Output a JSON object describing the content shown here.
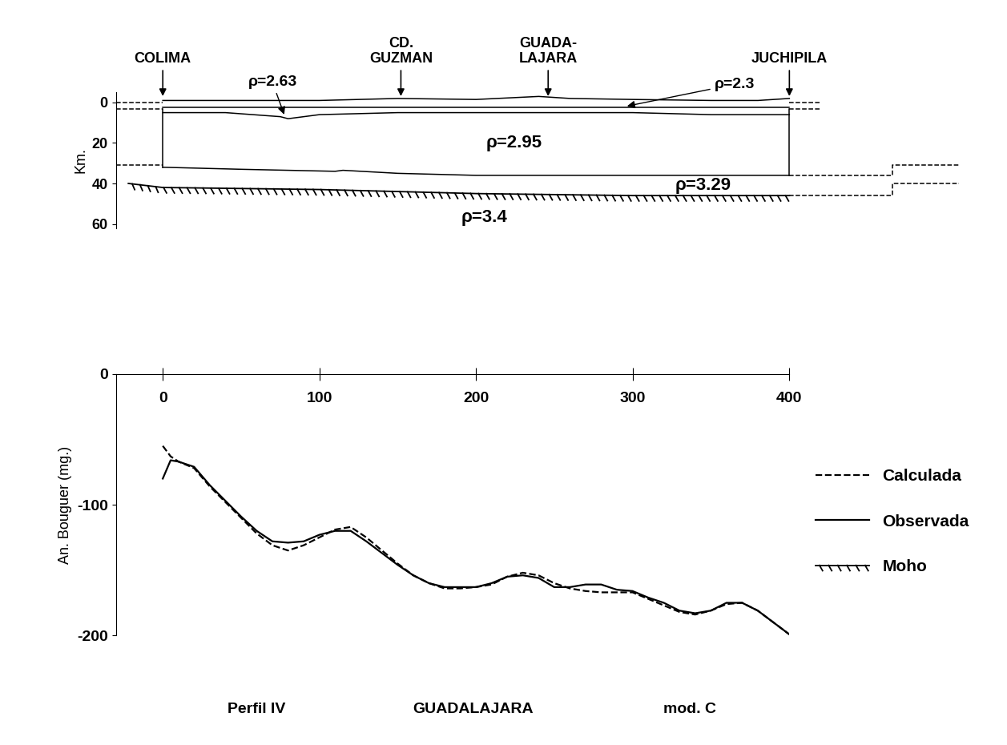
{
  "chart_data": [
    {
      "type": "section",
      "ylabel": "Km.",
      "xlim": [
        -30,
        510
      ],
      "ylim": [
        62,
        -5
      ],
      "yticks": [
        0,
        20,
        40,
        60
      ],
      "tick_labels": "y",
      "places": [
        {
          "text": "COLIMA",
          "x": 0
        },
        {
          "text": "CD.\nGUZMAN",
          "x": 152
        },
        {
          "text": "GUADA-\nLAJARA",
          "x": 246
        },
        {
          "text": "JUCHIPILA",
          "x": 400
        }
      ],
      "annotations": [
        {
          "text": "ρ=2.63",
          "x": 70,
          "y": -10,
          "arrow_to": [
            78,
            7
          ]
        },
        {
          "text": "ρ=2.3",
          "x": 365,
          "y": -9,
          "arrow_to": [
            295,
            2
          ]
        },
        {
          "text": "ρ=2.95",
          "x": 224,
          "y": 20
        },
        {
          "text": "ρ=3.29",
          "x": 345,
          "y": 41
        },
        {
          "text": "ρ=3.4",
          "x": 205,
          "y": 57
        }
      ],
      "boundaries": [
        {
          "x": [
            0,
            20,
            50,
            100,
            150,
            200,
            240,
            260,
            300,
            350,
            380,
            400
          ],
          "values": [
            -1,
            -1,
            -1,
            -1,
            -2,
            -1.5,
            -3,
            -2,
            -1.5,
            -1,
            -1,
            -2
          ],
          "line_style": "solid"
        },
        {
          "x": [
            0,
            400
          ],
          "values": [
            2.5,
            2.5
          ],
          "line_style": "solid"
        },
        {
          "x": [
            0,
            40,
            75,
            80,
            100,
            150,
            200,
            300,
            350,
            400
          ],
          "values": [
            5,
            5,
            7,
            8,
            6,
            5,
            5,
            5,
            6,
            6
          ],
          "line_style": "solid"
        },
        {
          "x": [
            0,
            50,
            110,
            115,
            150,
            200,
            300,
            400
          ],
          "values": [
            32,
            33,
            34,
            33.5,
            35,
            36,
            36,
            36
          ],
          "line_style": "solid"
        },
        {
          "x": [
            0,
            0
          ],
          "values": [
            3,
            32
          ],
          "line_style": "solid"
        },
        {
          "x": [
            400,
            400
          ],
          "values": [
            3,
            36
          ],
          "line_style": "solid"
        },
        {
          "x": [
            -30,
            0
          ],
          "values": [
            0,
            0
          ],
          "line_style": "dashed"
        },
        {
          "x": [
            -30,
            0
          ],
          "values": [
            3,
            3
          ],
          "line_style": "dashed"
        },
        {
          "x": [
            400,
            420
          ],
          "values": [
            0,
            0
          ],
          "line_style": "dashed"
        },
        {
          "x": [
            400,
            420
          ],
          "values": [
            3,
            3
          ],
          "line_style": "dashed"
        },
        {
          "x": [
            -30,
            0
          ],
          "values": [
            31,
            31
          ],
          "line_style": "dashed"
        },
        {
          "x": [
            400,
            466,
            466,
            508
          ],
          "values": [
            36,
            36,
            31,
            31
          ],
          "line_style": "dashed"
        },
        {
          "x": [
            400,
            466,
            466,
            508
          ],
          "values": [
            46,
            46,
            40,
            40
          ],
          "line_style": "dashed"
        }
      ],
      "series": [
        {
          "name": "Moho",
          "x": [
            -22,
            0,
            100,
            200,
            300,
            400
          ],
          "values": [
            40,
            42,
            43,
            45,
            46,
            46
          ],
          "color": "#000000",
          "line_style": "hatched"
        }
      ]
    },
    {
      "type": "line",
      "ylabel": "An. Bouguer (mg.)",
      "xlim": [
        -30,
        400
      ],
      "ylim": [
        -200,
        0
      ],
      "xticks": [
        0,
        100,
        200,
        300,
        400
      ],
      "yticks": [
        0,
        -100,
        -200
      ],
      "legend": "right",
      "caption": [
        "Perfil IV",
        "GUADALAJARA",
        "mod. C"
      ],
      "x": [
        0,
        5,
        10,
        20,
        30,
        40,
        50,
        60,
        70,
        80,
        90,
        100,
        110,
        120,
        130,
        140,
        150,
        160,
        170,
        180,
        190,
        200,
        210,
        220,
        230,
        240,
        250,
        260,
        270,
        280,
        290,
        300,
        310,
        320,
        330,
        340,
        350,
        360,
        370,
        380,
        390,
        400
      ],
      "series": [
        {
          "name": "Calculada",
          "color": "#000000",
          "line_style": "dashed",
          "values": [
            -55,
            -63,
            -67,
            -72,
            -86,
            -98,
            -110,
            -122,
            -131,
            -135,
            -131,
            -125,
            -119,
            -117,
            -125,
            -135,
            -145,
            -154,
            -160,
            -164,
            -164,
            -163,
            -161,
            -155,
            -152,
            -154,
            -160,
            -164,
            -166,
            -167,
            -167,
            -167,
            -172,
            -177,
            -182,
            -184,
            -181,
            -176,
            -175,
            -181,
            -190,
            -199
          ]
        },
        {
          "name": "Observada",
          "color": "#000000",
          "line_style": "solid",
          "values": [
            -80,
            -66,
            -67,
            -71,
            -85,
            -97,
            -109,
            -120,
            -128,
            -129,
            -128,
            -123,
            -120,
            -120,
            -128,
            -137,
            -146,
            -154,
            -160,
            -163,
            -163,
            -163,
            -160,
            -155,
            -154,
            -156,
            -163,
            -163,
            -161,
            -161,
            -165,
            -166,
            -171,
            -175,
            -181,
            -183,
            -181,
            -175,
            -175,
            -181,
            -190,
            -199
          ]
        }
      ]
    }
  ]
}
